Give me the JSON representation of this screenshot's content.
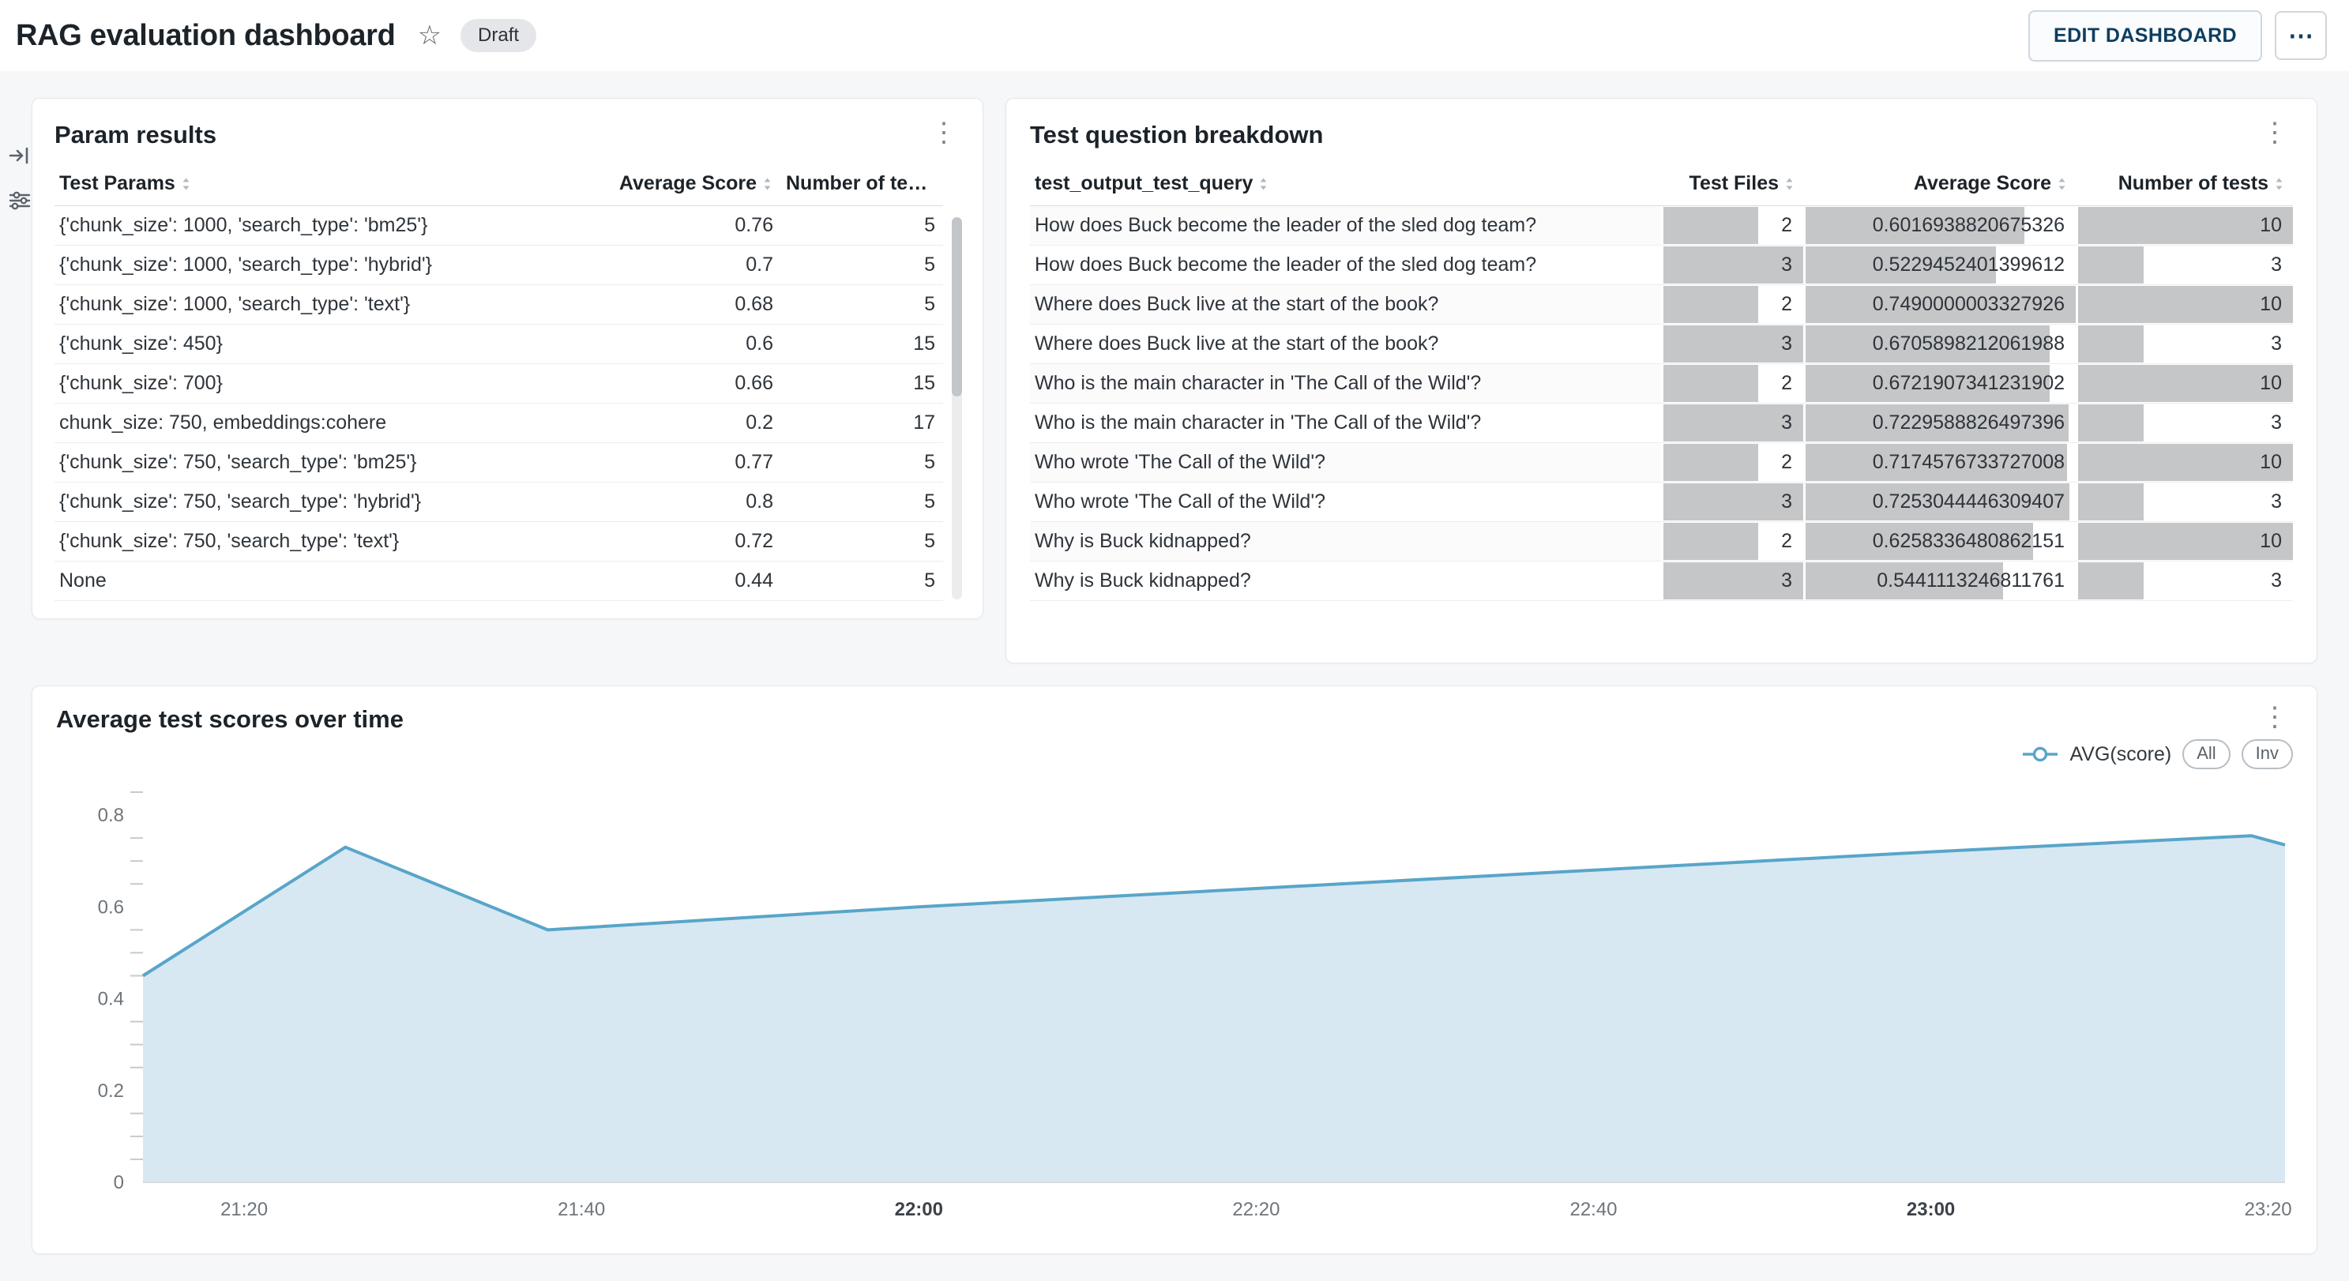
{
  "header": {
    "title": "RAG evaluation dashboard",
    "status_badge": "Draft",
    "edit_button": "EDIT DASHBOARD",
    "more_menu": "⋯"
  },
  "ui": {
    "star_glyph": "☆",
    "card_menu_glyph": "⋮"
  },
  "param_results": {
    "title": "Param results",
    "columns": [
      {
        "label": "Test Params",
        "align": "left"
      },
      {
        "label": "Average Score",
        "align": "right"
      },
      {
        "label": "Number of tests",
        "align": "right"
      }
    ],
    "rows": [
      {
        "params": "{'chunk_size': 1000, 'search_type': 'bm25'}",
        "avg_score": "0.76",
        "num_tests": "5"
      },
      {
        "params": "{'chunk_size': 1000, 'search_type': 'hybrid'}",
        "avg_score": "0.7",
        "num_tests": "5"
      },
      {
        "params": "{'chunk_size': 1000, 'search_type': 'text'}",
        "avg_score": "0.68",
        "num_tests": "5"
      },
      {
        "params": "{'chunk_size': 450}",
        "avg_score": "0.6",
        "num_tests": "15"
      },
      {
        "params": "{'chunk_size': 700}",
        "avg_score": "0.66",
        "num_tests": "15"
      },
      {
        "params": "chunk_size: 750, embeddings:cohere",
        "avg_score": "0.2",
        "num_tests": "17"
      },
      {
        "params": "{'chunk_size': 750, 'search_type': 'bm25'}",
        "avg_score": "0.77",
        "num_tests": "5"
      },
      {
        "params": "{'chunk_size': 750, 'search_type': 'hybrid'}",
        "avg_score": "0.8",
        "num_tests": "5"
      },
      {
        "params": "{'chunk_size': 750, 'search_type': 'text'}",
        "avg_score": "0.72",
        "num_tests": "5"
      },
      {
        "params": "None",
        "avg_score": "0.44",
        "num_tests": "5"
      }
    ]
  },
  "question_breakdown": {
    "title": "Test question breakdown",
    "columns": [
      {
        "label": "test_output_test_query",
        "align": "left"
      },
      {
        "label": "Test Files",
        "align": "right"
      },
      {
        "label": "Average Score",
        "align": "right"
      },
      {
        "label": "Number of tests",
        "align": "right"
      }
    ],
    "max": {
      "files": 3,
      "score": 0.7490000003327926,
      "tests": 10
    },
    "rows": [
      {
        "query": "How does Buck become the leader of the sled dog team?",
        "files": 2,
        "score": "0.6016938820675326",
        "tests": 10
      },
      {
        "query": "How does Buck become the leader of the sled dog team?",
        "files": 3,
        "score": "0.5229452401399612",
        "tests": 3
      },
      {
        "query": "Where does Buck live at the start of the book?",
        "files": 2,
        "score": "0.7490000003327926",
        "tests": 10
      },
      {
        "query": "Where does Buck live at the start of the book?",
        "files": 3,
        "score": "0.6705898212061988",
        "tests": 3
      },
      {
        "query": "Who is the main character in 'The Call of the Wild'?",
        "files": 2,
        "score": "0.6721907341231902",
        "tests": 10
      },
      {
        "query": "Who is the main character in 'The Call of the Wild'?",
        "files": 3,
        "score": "0.7229588826497396",
        "tests": 3
      },
      {
        "query": "Who wrote 'The Call of the Wild'?",
        "files": 2,
        "score": "0.7174576733727008",
        "tests": 10
      },
      {
        "query": "Who wrote 'The Call of the Wild'?",
        "files": 3,
        "score": "0.7253044446309407",
        "tests": 3
      },
      {
        "query": "Why is Buck kidnapped?",
        "files": 2,
        "score": "0.6258336480862151",
        "tests": 10
      },
      {
        "query": "Why is Buck kidnapped?",
        "files": 3,
        "score": "0.5441113246811761",
        "tests": 3
      }
    ]
  },
  "chart_card": {
    "title": "Average test scores over time",
    "legend_label": "AVG(score)",
    "all_button": "All",
    "inv_button": "Inv"
  },
  "chart_data": {
    "type": "area",
    "title": "Average test scores over time",
    "series": [
      {
        "name": "AVG(score)",
        "points": [
          [
            "21:14",
            0.45
          ],
          [
            "21:26",
            0.73
          ],
          [
            "21:38",
            0.55
          ],
          [
            "22:00",
            0.6
          ],
          [
            "22:20",
            0.64
          ],
          [
            "22:40",
            0.68
          ],
          [
            "23:00",
            0.72
          ],
          [
            "23:19",
            0.755
          ],
          [
            "23:21",
            0.735
          ]
        ]
      }
    ],
    "x_ticks": [
      "21:20",
      "21:40",
      "22:00",
      "22:20",
      "22:40",
      "23:00",
      "23:20"
    ],
    "x_ticks_bold": [
      "22:00",
      "23:00"
    ],
    "y_ticks": [
      0,
      0.2,
      0.4,
      0.6,
      0.8
    ],
    "ylim": [
      0,
      0.85
    ],
    "xlim": [
      "21:14",
      "23:21"
    ],
    "line_color": "#58a5c9",
    "fill_color": "#d7e8f2",
    "grid": false,
    "legend_position": "top-right"
  }
}
